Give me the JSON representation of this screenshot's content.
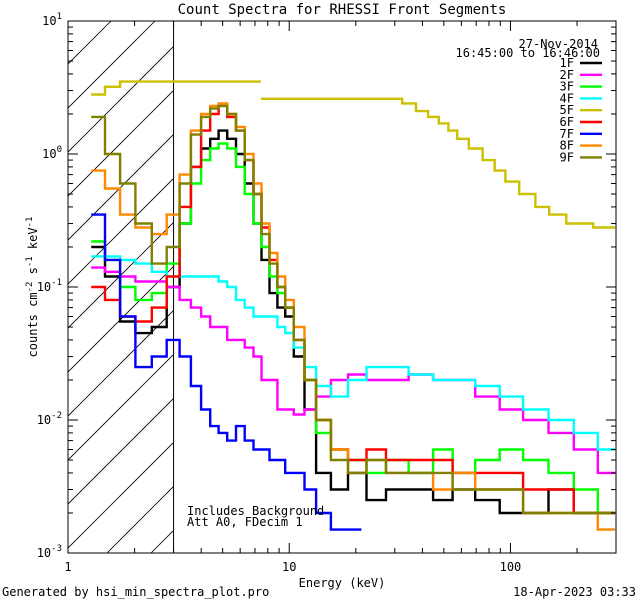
{
  "chart_data": {
    "type": "line",
    "title": "Count Spectra for RHESSI Front Segments",
    "xlabel": "Energy (keV)",
    "ylabel_main": "counts cm",
    "ylabel_exp1": "-2",
    "ylabel_mid": " s",
    "ylabel_exp2": "-1",
    "ylabel_end": " keV",
    "ylabel_exp3": "-1",
    "xscale": "log",
    "yscale": "log",
    "xlim": [
      1,
      300
    ],
    "ylim": [
      0.001,
      10
    ],
    "x_ticks": [
      {
        "value": 1,
        "label": "1"
      },
      {
        "value": 10,
        "label": "10"
      },
      {
        "value": 100,
        "label": "100"
      }
    ],
    "y_ticks": [
      {
        "value": 0.001,
        "base": "10",
        "exp": "-3"
      },
      {
        "value": 0.01,
        "base": "10",
        "exp": "-2"
      },
      {
        "value": 0.1,
        "base": "10",
        "exp": "-1"
      },
      {
        "value": 1,
        "base": "10",
        "exp": "0"
      },
      {
        "value": 10,
        "base": "10",
        "exp": "1"
      }
    ],
    "hatch_region": [
      1,
      3
    ],
    "date": "27-Nov-2014",
    "time_range": "16:45:00 to 16:46:00",
    "annotations": [
      "Includes Background",
      "Att A0, FDecim 1"
    ],
    "legend": {
      "position": "top-right"
    },
    "series": [
      {
        "name": "1F",
        "color": "#000000",
        "points": [
          [
            1.35,
            0.2
          ],
          [
            1.6,
            0.12
          ],
          [
            1.85,
            0.055
          ],
          [
            2.2,
            0.045
          ],
          [
            2.6,
            0.05
          ],
          [
            3.0,
            0.1
          ],
          [
            3.4,
            0.3
          ],
          [
            3.8,
            0.8
          ],
          [
            4.2,
            1.1
          ],
          [
            4.6,
            1.3
          ],
          [
            5.0,
            1.5
          ],
          [
            5.5,
            1.3
          ],
          [
            6.0,
            1.0
          ],
          [
            6.6,
            0.6
          ],
          [
            7.2,
            0.3
          ],
          [
            7.8,
            0.16
          ],
          [
            8.5,
            0.09
          ],
          [
            9.2,
            0.07
          ],
          [
            10.0,
            0.06
          ],
          [
            11.0,
            0.03
          ],
          [
            12.5,
            0.012
          ],
          [
            14,
            0.004
          ],
          [
            17,
            0.003
          ],
          [
            20,
            0.004
          ],
          [
            25,
            0.0025
          ],
          [
            30,
            0.003
          ],
          [
            40,
            0.003
          ],
          [
            50,
            0.0025
          ],
          [
            60,
            0.003
          ],
          [
            80,
            0.0025
          ],
          [
            100,
            0.002
          ],
          [
            130,
            0.002
          ],
          [
            170,
            0.003
          ],
          [
            220,
            0.002
          ],
          [
            280,
            0.002
          ]
        ]
      },
      {
        "name": "2F",
        "color": "#ff00ff",
        "points": [
          [
            1.35,
            0.14
          ],
          [
            1.6,
            0.13
          ],
          [
            1.85,
            0.12
          ],
          [
            2.2,
            0.11
          ],
          [
            2.6,
            0.11
          ],
          [
            3.0,
            0.1
          ],
          [
            3.4,
            0.08
          ],
          [
            3.8,
            0.07
          ],
          [
            4.2,
            0.06
          ],
          [
            4.6,
            0.05
          ],
          [
            5.0,
            0.05
          ],
          [
            5.5,
            0.04
          ],
          [
            6.0,
            0.04
          ],
          [
            6.6,
            0.035
          ],
          [
            7.2,
            0.03
          ],
          [
            7.8,
            0.02
          ],
          [
            8.5,
            0.02
          ],
          [
            9.2,
            0.012
          ],
          [
            10.0,
            0.012
          ],
          [
            11.0,
            0.011
          ],
          [
            12.5,
            0.012
          ],
          [
            14,
            0.015
          ],
          [
            17,
            0.02
          ],
          [
            20,
            0.022
          ],
          [
            25,
            0.02
          ],
          [
            30,
            0.02
          ],
          [
            40,
            0.022
          ],
          [
            50,
            0.02
          ],
          [
            60,
            0.02
          ],
          [
            80,
            0.015
          ],
          [
            100,
            0.012
          ],
          [
            130,
            0.01
          ],
          [
            170,
            0.008
          ],
          [
            220,
            0.006
          ],
          [
            280,
            0.004
          ]
        ]
      },
      {
        "name": "3F",
        "color": "#00ff00",
        "points": [
          [
            1.35,
            0.22
          ],
          [
            1.6,
            0.16
          ],
          [
            1.85,
            0.1
          ],
          [
            2.2,
            0.08
          ],
          [
            2.6,
            0.09
          ],
          [
            3.0,
            0.15
          ],
          [
            3.4,
            0.3
          ],
          [
            3.8,
            0.6
          ],
          [
            4.2,
            0.9
          ],
          [
            4.6,
            1.1
          ],
          [
            5.0,
            1.2
          ],
          [
            5.5,
            1.1
          ],
          [
            6.0,
            0.8
          ],
          [
            6.6,
            0.5
          ],
          [
            7.2,
            0.3
          ],
          [
            7.8,
            0.2
          ],
          [
            8.5,
            0.12
          ],
          [
            9.2,
            0.09
          ],
          [
            10.0,
            0.07
          ],
          [
            11.0,
            0.04
          ],
          [
            12.5,
            0.02
          ],
          [
            14,
            0.008
          ],
          [
            17,
            0.006
          ],
          [
            20,
            0.005
          ],
          [
            25,
            0.004
          ],
          [
            30,
            0.005
          ],
          [
            40,
            0.004
          ],
          [
            50,
            0.006
          ],
          [
            60,
            0.004
          ],
          [
            80,
            0.005
          ],
          [
            100,
            0.006
          ],
          [
            130,
            0.005
          ],
          [
            170,
            0.004
          ],
          [
            220,
            0.003
          ],
          [
            280,
            0.002
          ]
        ]
      },
      {
        "name": "4F",
        "color": "#00ffff",
        "points": [
          [
            1.35,
            0.17
          ],
          [
            1.6,
            0.17
          ],
          [
            1.85,
            0.16
          ],
          [
            2.2,
            0.15
          ],
          [
            2.6,
            0.13
          ],
          [
            3.0,
            0.12
          ],
          [
            3.4,
            0.12
          ],
          [
            3.8,
            0.12
          ],
          [
            4.2,
            0.12
          ],
          [
            4.6,
            0.12
          ],
          [
            5.0,
            0.11
          ],
          [
            5.5,
            0.1
          ],
          [
            6.0,
            0.08
          ],
          [
            6.6,
            0.07
          ],
          [
            7.2,
            0.06
          ],
          [
            7.8,
            0.06
          ],
          [
            8.5,
            0.06
          ],
          [
            9.2,
            0.05
          ],
          [
            10.0,
            0.045
          ],
          [
            11.0,
            0.035
          ],
          [
            12.5,
            0.025
          ],
          [
            14,
            0.018
          ],
          [
            17,
            0.015
          ],
          [
            20,
            0.02
          ],
          [
            25,
            0.025
          ],
          [
            30,
            0.025
          ],
          [
            40,
            0.022
          ],
          [
            50,
            0.02
          ],
          [
            60,
            0.02
          ],
          [
            80,
            0.018
          ],
          [
            100,
            0.015
          ],
          [
            130,
            0.012
          ],
          [
            170,
            0.01
          ],
          [
            220,
            0.008
          ],
          [
            280,
            0.006
          ]
        ]
      },
      {
        "name": "5F",
        "color": "#ccc000",
        "points": [
          [
            1.35,
            2.8
          ],
          [
            1.6,
            3.2
          ],
          [
            1.85,
            3.5
          ],
          [
            30,
            2.6
          ],
          [
            35,
            2.4
          ],
          [
            40,
            2.1
          ],
          [
            45,
            1.9
          ],
          [
            50,
            1.7
          ],
          [
            55,
            1.5
          ],
          [
            60,
            1.3
          ],
          [
            70,
            1.1
          ],
          [
            80,
            0.9
          ],
          [
            90,
            0.75
          ],
          [
            100,
            0.62
          ],
          [
            120,
            0.5
          ],
          [
            140,
            0.4
          ],
          [
            160,
            0.35
          ],
          [
            200,
            0.3
          ],
          [
            280,
            0.28
          ]
        ]
      },
      {
        "name": "6F",
        "color": "#ff0000",
        "points": [
          [
            1.35,
            0.1
          ],
          [
            1.6,
            0.08
          ],
          [
            1.85,
            0.06
          ],
          [
            2.2,
            0.055
          ],
          [
            2.6,
            0.07
          ],
          [
            3.0,
            0.12
          ],
          [
            3.4,
            0.4
          ],
          [
            3.8,
            0.8
          ],
          [
            4.2,
            1.5
          ],
          [
            4.6,
            2.0
          ],
          [
            5.0,
            2.3
          ],
          [
            5.5,
            1.9
          ],
          [
            6.0,
            1.5
          ],
          [
            6.6,
            0.9
          ],
          [
            7.2,
            0.5
          ],
          [
            7.8,
            0.28
          ],
          [
            8.5,
            0.16
          ],
          [
            9.2,
            0.1
          ],
          [
            10.0,
            0.07
          ],
          [
            11.0,
            0.04
          ],
          [
            12.5,
            0.02
          ],
          [
            14,
            0.01
          ],
          [
            17,
            0.006
          ],
          [
            20,
            0.005
          ],
          [
            25,
            0.006
          ],
          [
            30,
            0.005
          ],
          [
            40,
            0.005
          ],
          [
            50,
            0.005
          ],
          [
            60,
            0.004
          ],
          [
            80,
            0.004
          ],
          [
            100,
            0.004
          ],
          [
            130,
            0.003
          ],
          [
            170,
            0.003
          ],
          [
            220,
            0.002
          ],
          [
            280,
            0.002
          ]
        ]
      },
      {
        "name": "7F",
        "color": "#0000ff",
        "points": [
          [
            1.35,
            0.35
          ],
          [
            1.6,
            0.16
          ],
          [
            1.85,
            0.06
          ],
          [
            2.2,
            0.025
          ],
          [
            2.6,
            0.03
          ],
          [
            3.0,
            0.04
          ],
          [
            3.4,
            0.03
          ],
          [
            3.8,
            0.018
          ],
          [
            4.2,
            0.012
          ],
          [
            4.6,
            0.009
          ],
          [
            5.0,
            0.008
          ],
          [
            5.5,
            0.007
          ],
          [
            6.0,
            0.009
          ],
          [
            6.6,
            0.007
          ],
          [
            7.2,
            0.006
          ],
          [
            7.8,
            0.006
          ],
          [
            8.5,
            0.005
          ],
          [
            9.2,
            0.005
          ],
          [
            10.0,
            0.004
          ],
          [
            11.0,
            0.004
          ],
          [
            12.5,
            0.003
          ],
          [
            14,
            0.002
          ],
          [
            17,
            0.0015
          ],
          [
            20,
            0.0015
          ]
        ]
      },
      {
        "name": "8F",
        "color": "#ff8800",
        "points": [
          [
            1.35,
            0.75
          ],
          [
            1.6,
            0.55
          ],
          [
            1.85,
            0.35
          ],
          [
            2.2,
            0.28
          ],
          [
            2.6,
            0.25
          ],
          [
            3.0,
            0.35
          ],
          [
            3.4,
            0.7
          ],
          [
            3.8,
            1.5
          ],
          [
            4.2,
            2.0
          ],
          [
            4.6,
            2.3
          ],
          [
            5.0,
            2.4
          ],
          [
            5.5,
            2.0
          ],
          [
            6.0,
            1.6
          ],
          [
            6.6,
            1.0
          ],
          [
            7.2,
            0.6
          ],
          [
            7.8,
            0.3
          ],
          [
            8.5,
            0.18
          ],
          [
            9.2,
            0.12
          ],
          [
            10.0,
            0.08
          ],
          [
            11.0,
            0.05
          ],
          [
            12.5,
            0.02
          ],
          [
            14,
            0.01
          ],
          [
            17,
            0.006
          ],
          [
            20,
            0.004
          ],
          [
            25,
            0.005
          ],
          [
            30,
            0.004
          ],
          [
            40,
            0.004
          ],
          [
            50,
            0.003
          ],
          [
            60,
            0.004
          ],
          [
            80,
            0.003
          ],
          [
            100,
            0.003
          ],
          [
            130,
            0.002
          ],
          [
            170,
            0.002
          ],
          [
            220,
            0.002
          ],
          [
            280,
            0.0015
          ]
        ]
      },
      {
        "name": "9F",
        "color": "#808000",
        "points": [
          [
            1.35,
            1.9
          ],
          [
            1.6,
            1.0
          ],
          [
            1.85,
            0.6
          ],
          [
            2.2,
            0.3
          ],
          [
            2.6,
            0.15
          ],
          [
            3.0,
            0.2
          ],
          [
            3.4,
            0.6
          ],
          [
            3.8,
            1.4
          ],
          [
            4.2,
            1.9
          ],
          [
            4.6,
            2.2
          ],
          [
            5.0,
            2.3
          ],
          [
            5.5,
            2.0
          ],
          [
            6.0,
            1.5
          ],
          [
            6.6,
            0.9
          ],
          [
            7.2,
            0.5
          ],
          [
            7.8,
            0.25
          ],
          [
            8.5,
            0.15
          ],
          [
            9.2,
            0.1
          ],
          [
            10.0,
            0.07
          ],
          [
            11.0,
            0.04
          ],
          [
            12.5,
            0.02
          ],
          [
            14,
            0.01
          ],
          [
            17,
            0.005
          ],
          [
            20,
            0.004
          ],
          [
            25,
            0.005
          ],
          [
            30,
            0.004
          ],
          [
            40,
            0.004
          ],
          [
            50,
            0.004
          ],
          [
            60,
            0.003
          ],
          [
            80,
            0.003
          ],
          [
            100,
            0.003
          ],
          [
            130,
            0.002
          ],
          [
            170,
            0.002
          ],
          [
            220,
            0.002
          ],
          [
            280,
            0.002
          ]
        ]
      }
    ]
  },
  "footer": {
    "generated_by": "Generated by hsi_min_spectra_plot.pro",
    "timestamp": "18-Apr-2023 03:33"
  }
}
